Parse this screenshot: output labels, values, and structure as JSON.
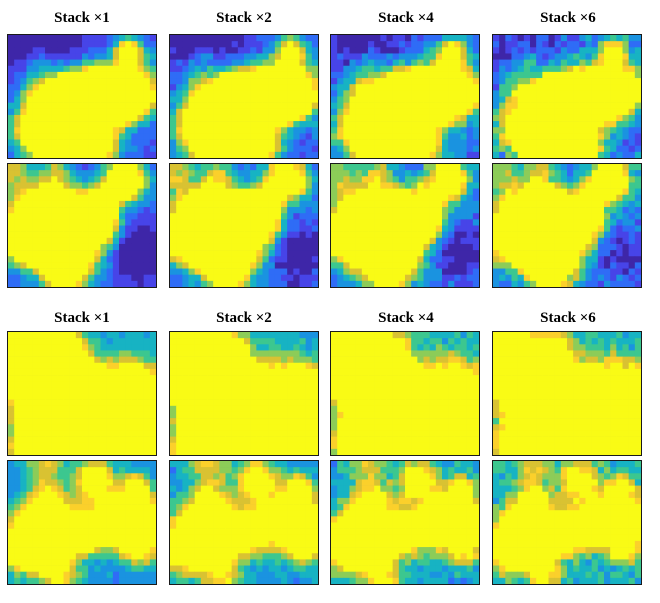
{
  "colors": {
    "colormap": [
      "#3e26a8",
      "#4744e8",
      "#2f6cf6",
      "#1a93e0",
      "#17b3c3",
      "#3cc78f",
      "#8ccc58",
      "#d9c232",
      "#fbd02b",
      "#f9fb15"
    ],
    "border": "#1a1a1a"
  },
  "figure": {
    "groups": [
      {
        "titles": [
          "Stack ×1",
          "Stack ×2",
          "Stack ×4",
          "Stack ×6"
        ]
      },
      {
        "titles": [
          "Stack ×1",
          "Stack ×2",
          "Stack ×4",
          "Stack ×6"
        ]
      }
    ]
  }
}
